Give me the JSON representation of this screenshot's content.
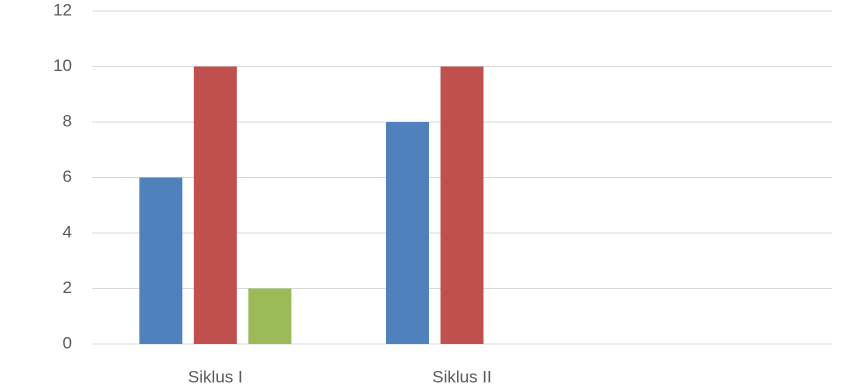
{
  "chart_data": {
    "type": "bar",
    "categories": [
      "Siklus I",
      "Siklus II",
      null
    ],
    "series": [
      {
        "color": "#4f81bd",
        "values": [
          6,
          8,
          null
        ]
      },
      {
        "color": "#c0504d",
        "values": [
          10,
          10,
          null
        ]
      },
      {
        "color": "#9bbb59",
        "values": [
          2,
          null,
          null
        ]
      }
    ],
    "ylim": [
      0,
      12
    ],
    "yticks": [
      0,
      2,
      4,
      6,
      8,
      10,
      12
    ],
    "grid": true
  }
}
